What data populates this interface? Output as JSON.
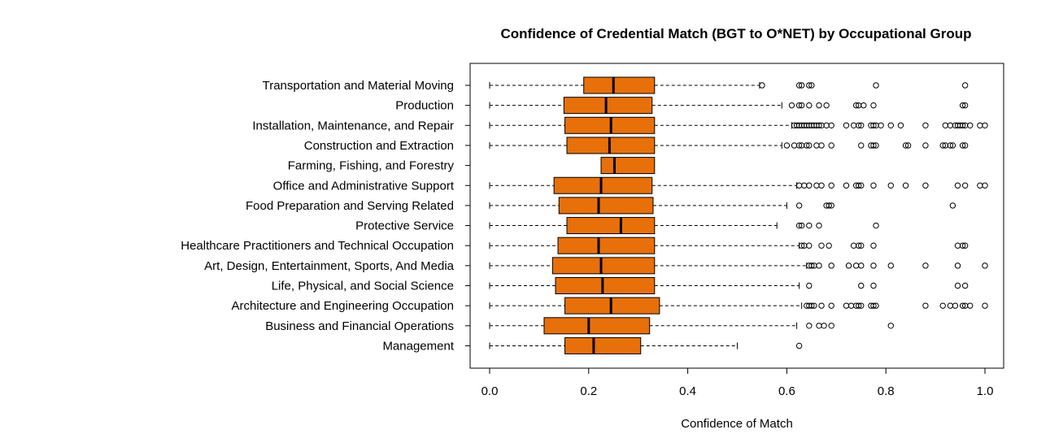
{
  "chart_data": {
    "type": "boxplot",
    "orientation": "horizontal",
    "title": "Confidence of Credential Match (BGT to O*NET) by Occupational Group",
    "xlabel": "Confidence of Match",
    "ylabel": "",
    "xlim": [
      -0.04,
      1.04
    ],
    "xticks": [
      "0.0",
      "0.2",
      "0.4",
      "0.6",
      "0.8",
      "1.0"
    ],
    "box_color": "#E8700A",
    "categories": [
      "Transportation and Material Moving",
      "Production",
      "Installation, Maintenance, and Repair",
      "Construction and Extraction",
      "Farming, Fishing, and Forestry",
      "Office and Administrative Support",
      "Food Preparation and Serving Related",
      "Protective Service",
      "Healthcare Practitioners and Technical Occupation",
      "Art, Design, Entertainment, Sports, And Media",
      "Life, Physical, and Social Science",
      "Architecture and Engineering Occupation",
      "Business and Financial Operations",
      "Management"
    ],
    "boxes": [
      {
        "whisker_low": 0.0,
        "q1": 0.19,
        "median": 0.25,
        "q3": 0.333,
        "whisker_high": 0.545,
        "outliers": [
          0.55,
          0.625,
          0.63,
          0.645,
          0.65,
          0.78,
          0.96
        ]
      },
      {
        "whisker_low": 0.0,
        "q1": 0.15,
        "median": 0.235,
        "q3": 0.328,
        "whisker_high": 0.59,
        "outliers": [
          0.61,
          0.625,
          0.63,
          0.645,
          0.665,
          0.68,
          0.74,
          0.745,
          0.755,
          0.775,
          0.955,
          0.96
        ]
      },
      {
        "whisker_low": 0.0,
        "q1": 0.152,
        "median": 0.245,
        "q3": 0.333,
        "whisker_high": 0.61,
        "outliers": [
          0.615,
          0.62,
          0.625,
          0.63,
          0.635,
          0.64,
          0.645,
          0.65,
          0.655,
          0.66,
          0.665,
          0.67,
          0.68,
          0.69,
          0.72,
          0.735,
          0.745,
          0.75,
          0.77,
          0.775,
          0.78,
          0.79,
          0.81,
          0.83,
          0.88,
          0.92,
          0.93,
          0.94,
          0.945,
          0.95,
          0.955,
          0.96,
          0.97,
          0.99,
          1.0
        ]
      },
      {
        "whisker_low": 0.0,
        "q1": 0.156,
        "median": 0.242,
        "q3": 0.333,
        "whisker_high": 0.59,
        "outliers": [
          0.6,
          0.615,
          0.625,
          0.63,
          0.64,
          0.645,
          0.66,
          0.67,
          0.69,
          0.75,
          0.77,
          0.775,
          0.78,
          0.84,
          0.845,
          0.88,
          0.915,
          0.92,
          0.93,
          0.935,
          0.955,
          0.96
        ]
      },
      {
        "whisker_low": 0.225,
        "q1": 0.225,
        "median": 0.252,
        "q3": 0.333,
        "whisker_high": 0.333,
        "outliers": []
      },
      {
        "whisker_low": 0.0,
        "q1": 0.13,
        "median": 0.225,
        "q3": 0.328,
        "whisker_high": 0.62,
        "outliers": [
          0.625,
          0.635,
          0.645,
          0.66,
          0.67,
          0.69,
          0.72,
          0.74,
          0.745,
          0.75,
          0.775,
          0.81,
          0.84,
          0.88,
          0.945,
          0.96,
          0.99,
          1.0
        ]
      },
      {
        "whisker_low": 0.0,
        "q1": 0.14,
        "median": 0.22,
        "q3": 0.33,
        "whisker_high": 0.6,
        "outliers": [
          0.625,
          0.68,
          0.685,
          0.69,
          0.935
        ]
      },
      {
        "whisker_low": 0.0,
        "q1": 0.156,
        "median": 0.265,
        "q3": 0.333,
        "whisker_high": 0.58,
        "outliers": [
          0.625,
          0.63,
          0.645,
          0.665,
          0.78
        ]
      },
      {
        "whisker_low": 0.0,
        "q1": 0.138,
        "median": 0.22,
        "q3": 0.333,
        "whisker_high": 0.625,
        "outliers": [
          0.63,
          0.635,
          0.645,
          0.67,
          0.685,
          0.735,
          0.745,
          0.75,
          0.775,
          0.945,
          0.955,
          0.96
        ]
      },
      {
        "whisker_low": 0.0,
        "q1": 0.127,
        "median": 0.225,
        "q3": 0.333,
        "whisker_high": 0.64,
        "outliers": [
          0.645,
          0.65,
          0.655,
          0.665,
          0.69,
          0.725,
          0.74,
          0.75,
          0.775,
          0.81,
          0.88,
          0.945,
          1.0
        ]
      },
      {
        "whisker_low": 0.0,
        "q1": 0.133,
        "median": 0.228,
        "q3": 0.333,
        "whisker_high": 0.625,
        "outliers": [
          0.645,
          0.75,
          0.775,
          0.945,
          0.96
        ]
      },
      {
        "whisker_low": 0.0,
        "q1": 0.152,
        "median": 0.245,
        "q3": 0.343,
        "whisker_high": 0.63,
        "outliers": [
          0.64,
          0.645,
          0.65,
          0.655,
          0.67,
          0.69,
          0.72,
          0.73,
          0.74,
          0.745,
          0.75,
          0.77,
          0.775,
          0.78,
          0.88,
          0.915,
          0.93,
          0.94,
          0.955,
          0.96,
          0.97,
          1.0
        ]
      },
      {
        "whisker_low": 0.0,
        "q1": 0.11,
        "median": 0.2,
        "q3": 0.323,
        "whisker_high": 0.62,
        "outliers": [
          0.645,
          0.665,
          0.675,
          0.69,
          0.81
        ]
      },
      {
        "whisker_low": 0.0,
        "q1": 0.152,
        "median": 0.21,
        "q3": 0.305,
        "whisker_high": 0.5,
        "outliers": [
          0.625
        ]
      }
    ]
  }
}
